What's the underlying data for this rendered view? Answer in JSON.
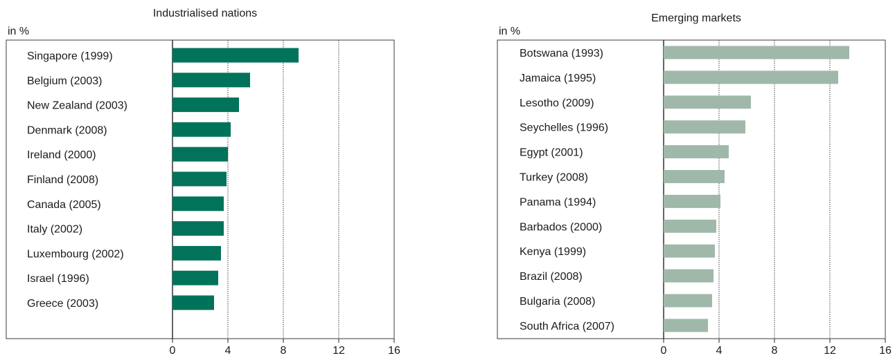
{
  "chart_data": [
    {
      "type": "bar",
      "orientation": "horizontal",
      "title": "Industrialised nations",
      "unit_label": "in %",
      "categories": [
        "Singapore (1999)",
        "Belgium (2003)",
        "New Zealand (2003)",
        "Denmark (2008)",
        "Ireland (2000)",
        "Finland (2008)",
        "Canada (2005)",
        "Italy (2002)",
        "Luxembourg (2002)",
        "Israel (1996)",
        "Greece (2003)"
      ],
      "values": [
        9.1,
        5.6,
        4.8,
        4.2,
        4.0,
        3.9,
        3.7,
        3.7,
        3.5,
        3.3,
        3.0
      ],
      "xlim": [
        0,
        16
      ],
      "xticks": [
        "0",
        "4",
        "8",
        "12",
        "16"
      ],
      "grid": "vertical dotted lines at 4, 8, 12, 16",
      "bar_color": "#00735a"
    },
    {
      "type": "bar",
      "orientation": "horizontal",
      "title": "Emerging markets",
      "unit_label": "in %",
      "categories": [
        "Botswana (1993)",
        "Jamaica (1995)",
        "Lesotho (2009)",
        "Seychelles (1996)",
        "Egypt (2001)",
        "Turkey (2008)",
        "Panama (1994)",
        "Barbados (2000)",
        "Kenya (1999)",
        "Brazil (2008)",
        "Bulgaria (2008)",
        "South Africa (2007)"
      ],
      "values": [
        13.4,
        12.6,
        6.3,
        5.9,
        4.7,
        4.4,
        4.1,
        3.8,
        3.7,
        3.6,
        3.5,
        3.2
      ],
      "xlim": [
        0,
        16
      ],
      "xticks": [
        "0",
        "4",
        "8",
        "12",
        "16"
      ],
      "grid": "vertical dotted lines at 4, 8, 12, 16",
      "bar_color": "#9fb8aa"
    }
  ]
}
